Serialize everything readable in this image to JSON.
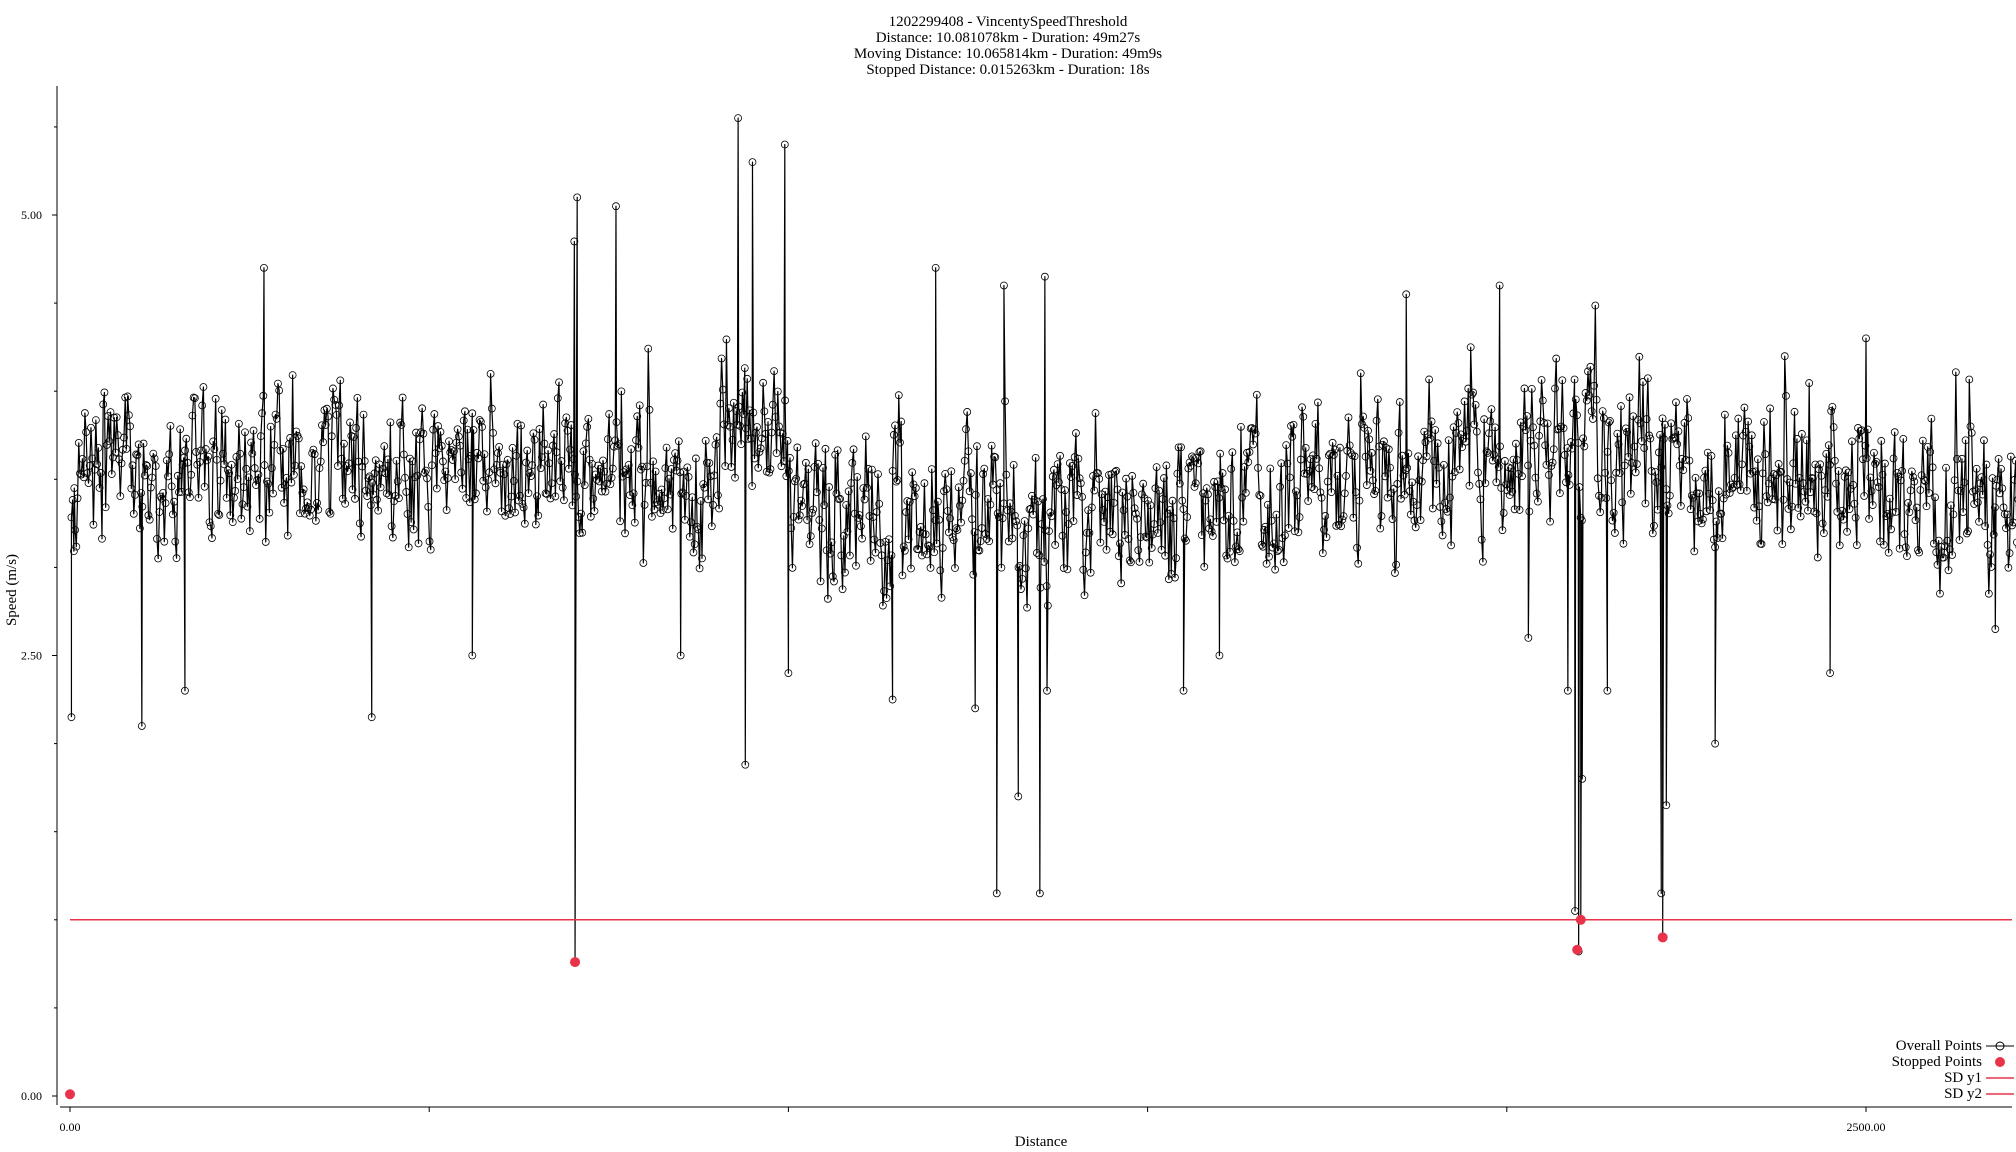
{
  "title_lines": [
    "1202299408 - VincentySpeedThreshold",
    "Distance: 10.081078km - Duration: 49m27s",
    "Moving Distance: 10.065814km - Duration: 49m9s",
    "Stopped Distance: 0.015263km - Duration: 18s"
  ],
  "colors": {
    "series": "#000000",
    "stopped": "#e8334a",
    "threshold": "#e8334a",
    "axis": "#000000"
  },
  "chart_data": {
    "type": "scatter",
    "xlabel": "Distance",
    "ylabel": "Speed (m/s)",
    "xlim": [
      0,
      2720
    ],
    "ylim": [
      -0.05,
      5.75
    ],
    "x_ticks": [
      0,
      500,
      1000,
      1500,
      2000,
      2500
    ],
    "x_tick_labels": [
      "0.00",
      "",
      "",
      "",
      "",
      "2500.00"
    ],
    "y_ticks": [
      0,
      2.5,
      5
    ],
    "y_tick_labels": [
      "0.00",
      "2.50",
      "5.00"
    ],
    "grid": false,
    "legend_position": "bottom-right",
    "legend": [
      "Overall Points",
      "Stopped Points",
      "SD y1",
      "SD y2"
    ],
    "threshold_lines": [
      {
        "name": "SD y1",
        "y": 1.0
      },
      {
        "name": "SD y2",
        "y": 1.0
      }
    ],
    "stopped_points": [
      {
        "x": 0,
        "y": 0.01
      },
      {
        "x": 703,
        "y": 0.76
      },
      {
        "x": 2098,
        "y": 0.83
      },
      {
        "x": 2103,
        "y": 1.0
      },
      {
        "x": 2217,
        "y": 0.9
      }
    ],
    "overall_series": {
      "name": "Overall Points",
      "x_start": 2,
      "x_end": 2722,
      "count": 1600,
      "typical_range": [
        2.9,
        4.1
      ],
      "keypoints": [
        [
          2,
          2.15
        ],
        [
          6,
          3.45
        ],
        [
          100,
          2.1
        ],
        [
          160,
          2.3
        ],
        [
          270,
          4.7
        ],
        [
          420,
          2.15
        ],
        [
          560,
          2.5
        ],
        [
          702,
          4.85
        ],
        [
          703,
          0.76
        ],
        [
          706,
          5.1
        ],
        [
          760,
          5.05
        ],
        [
          850,
          2.5
        ],
        [
          930,
          5.55
        ],
        [
          940,
          1.88
        ],
        [
          950,
          5.3
        ],
        [
          995,
          5.4
        ],
        [
          1000,
          2.4
        ],
        [
          1145,
          2.25
        ],
        [
          1205,
          4.7
        ],
        [
          1260,
          2.2
        ],
        [
          1290,
          1.15
        ],
        [
          1300,
          4.6
        ],
        [
          1320,
          1.7
        ],
        [
          1350,
          1.15
        ],
        [
          1357,
          4.65
        ],
        [
          1360,
          2.3
        ],
        [
          1550,
          2.3
        ],
        [
          1600,
          2.5
        ],
        [
          1860,
          4.55
        ],
        [
          1990,
          4.6
        ],
        [
          2030,
          2.6
        ],
        [
          2085,
          2.3
        ],
        [
          2095,
          1.05
        ],
        [
          2100,
          0.82
        ],
        [
          2103,
          1.0
        ],
        [
          2105,
          1.8
        ],
        [
          2140,
          2.3
        ],
        [
          2215,
          1.15
        ],
        [
          2217,
          0.9
        ],
        [
          2222,
          1.65
        ],
        [
          2290,
          2.0
        ],
        [
          2450,
          2.4
        ],
        [
          2500,
          4.3
        ],
        [
          2680,
          2.65
        ]
      ]
    }
  }
}
